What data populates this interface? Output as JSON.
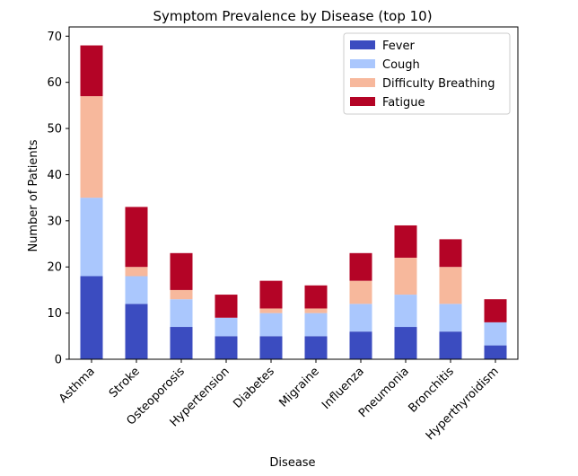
{
  "chart_data": {
    "type": "bar",
    "stacked": true,
    "title": "Symptom Prevalence by Disease (top 10)",
    "xlabel": "Disease",
    "ylabel": "Number of Patients",
    "ylim": [
      0,
      72
    ],
    "yticks": [
      0,
      10,
      20,
      30,
      40,
      50,
      60,
      70
    ],
    "grid": false,
    "legend_position": "top-right",
    "categories": [
      "Asthma",
      "Stroke",
      "Osteoporosis",
      "Hypertension",
      "Diabetes",
      "Migraine",
      "Influenza",
      "Pneumonia",
      "Bronchitis",
      "Hyperthyroidism"
    ],
    "series": [
      {
        "name": "Fever",
        "color": "#3b4cc0",
        "values": [
          18,
          12,
          7,
          5,
          5,
          5,
          6,
          7,
          6,
          3
        ]
      },
      {
        "name": "Cough",
        "color": "#aac7fd",
        "values": [
          17,
          6,
          6,
          4,
          5,
          5,
          6,
          7,
          6,
          5
        ]
      },
      {
        "name": "Difficulty Breathing",
        "color": "#f7b89c",
        "values": [
          22,
          2,
          2,
          0,
          1,
          1,
          5,
          8,
          8,
          0
        ]
      },
      {
        "name": "Fatigue",
        "color": "#b40426",
        "values": [
          11,
          13,
          8,
          5,
          6,
          5,
          6,
          7,
          6,
          5
        ]
      }
    ]
  }
}
